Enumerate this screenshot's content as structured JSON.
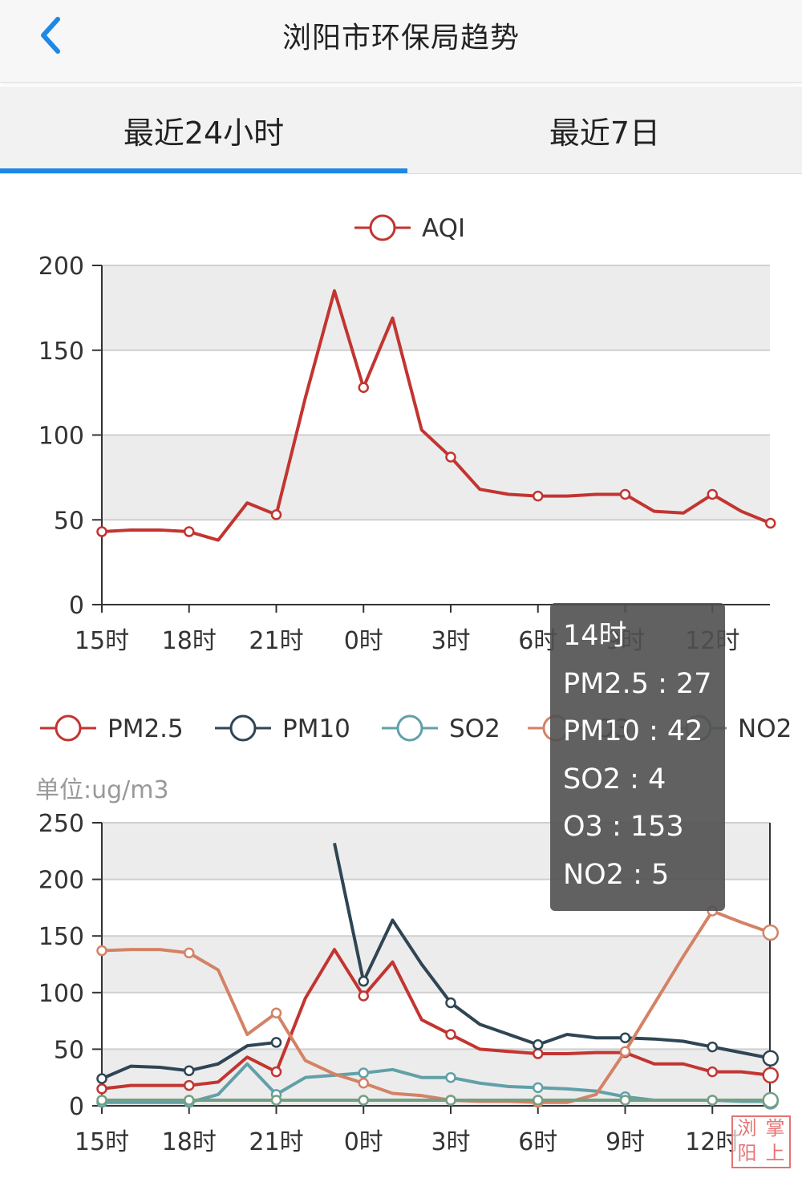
{
  "header": {
    "title": "浏阳市环保局趋势"
  },
  "tabs": [
    {
      "label": "最近24小时"
    },
    {
      "label": "最近7日"
    }
  ],
  "active_tab": 0,
  "pollutants": {
    "unit_label": "单位:ug/m3"
  },
  "tooltip": {
    "time": "14时",
    "lines": [
      "PM2.5 : 27",
      "PM10 : 42",
      "SO2 : 4",
      "O3 : 153",
      "NO2 : 5"
    ]
  },
  "watermark": {
    "chars": [
      "浏",
      "掌",
      "阳",
      "上"
    ]
  },
  "colors": {
    "aqi": "#c23531",
    "pm25": "#c23531",
    "pm10": "#2f4554",
    "so2": "#61a0a8",
    "o3": "#d48265",
    "no2": "#749f83"
  },
  "chart_data": [
    {
      "type": "line",
      "title": "",
      "legend": [
        "AQI"
      ],
      "categories": [
        "15时",
        "16时",
        "17时",
        "18时",
        "19时",
        "20时",
        "21时",
        "22时",
        "23时",
        "0时",
        "1时",
        "2时",
        "3时",
        "4时",
        "5时",
        "6时",
        "7时",
        "8时",
        "9时",
        "10时",
        "11时",
        "12时",
        "13时",
        "14时"
      ],
      "x_tick_labels": [
        "15时",
        "18时",
        "21时",
        "0时",
        "3时",
        "6时",
        "9时",
        "12时"
      ],
      "ylim": [
        0,
        200
      ],
      "y_ticks": [
        0,
        50,
        100,
        150,
        200
      ],
      "grid": true,
      "series": [
        {
          "name": "AQI",
          "values": [
            43,
            44,
            44,
            43,
            38,
            60,
            53,
            122,
            185,
            128,
            169,
            103,
            87,
            68,
            65,
            64,
            64,
            65,
            65,
            55,
            54,
            65,
            55,
            48
          ]
        }
      ]
    },
    {
      "type": "line",
      "title": "",
      "legend": [
        "PM2.5",
        "PM10",
        "SO2",
        "O3",
        "NO2"
      ],
      "ylabel": "单位:ug/m3",
      "categories": [
        "15时",
        "16时",
        "17时",
        "18时",
        "19时",
        "20时",
        "21时",
        "22时",
        "23时",
        "0时",
        "1时",
        "2时",
        "3时",
        "4时",
        "5时",
        "6时",
        "7时",
        "8时",
        "9时",
        "10时",
        "11时",
        "12时",
        "13时",
        "14时"
      ],
      "x_tick_labels": [
        "15时",
        "18时",
        "21时",
        "0时",
        "3时",
        "6时",
        "9时",
        "12时"
      ],
      "ylim": [
        0,
        250
      ],
      "y_ticks": [
        0,
        50,
        100,
        150,
        200,
        250
      ],
      "grid": true,
      "series": [
        {
          "name": "PM2.5",
          "values": [
            15,
            18,
            18,
            18,
            21,
            43,
            30,
            95,
            138,
            97,
            127,
            76,
            63,
            50,
            48,
            46,
            46,
            47,
            47,
            37,
            37,
            30,
            30,
            27
          ]
        },
        {
          "name": "PM10",
          "values": [
            24,
            35,
            34,
            31,
            37,
            53,
            56,
            null,
            232,
            110,
            164,
            125,
            91,
            72,
            63,
            54,
            63,
            60,
            60,
            59,
            57,
            52,
            47,
            42
          ]
        },
        {
          "name": "SO2",
          "values": [
            3,
            3,
            3,
            3,
            10,
            37,
            10,
            25,
            27,
            29,
            32,
            25,
            25,
            20,
            17,
            16,
            15,
            13,
            8,
            5,
            5,
            5,
            4,
            4
          ]
        },
        {
          "name": "O3",
          "values": [
            137,
            138,
            138,
            135,
            120,
            63,
            82,
            40,
            28,
            20,
            11,
            9,
            5,
            4,
            4,
            3,
            3,
            10,
            48,
            90,
            132,
            172,
            162,
            153
          ]
        },
        {
          "name": "NO2",
          "values": [
            5,
            5,
            5,
            5,
            5,
            5,
            5,
            5,
            5,
            5,
            5,
            5,
            5,
            5,
            5,
            5,
            5,
            5,
            5,
            5,
            5,
            5,
            5,
            5
          ]
        }
      ]
    }
  ]
}
